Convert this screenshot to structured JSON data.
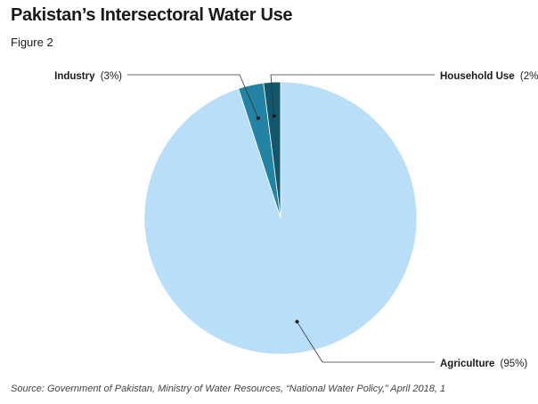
{
  "title": "Pakistan’s Intersectoral Water Use",
  "subtitle": "Figure 2",
  "source": "Source: Government of Pakistan, Ministry of Water Resources, “National Water Policy,” April 2018, 1",
  "chart_data": {
    "type": "pie",
    "slices": [
      {
        "name": "Agriculture",
        "value": 95,
        "label_value": "(95%)",
        "color": "#b9def7"
      },
      {
        "name": "Industry",
        "value": 3,
        "label_value": "(3%)",
        "color": "#2283a4"
      },
      {
        "name": "Household Use",
        "value": 2,
        "label_value": "(2%)",
        "color": "#13576e"
      }
    ]
  }
}
